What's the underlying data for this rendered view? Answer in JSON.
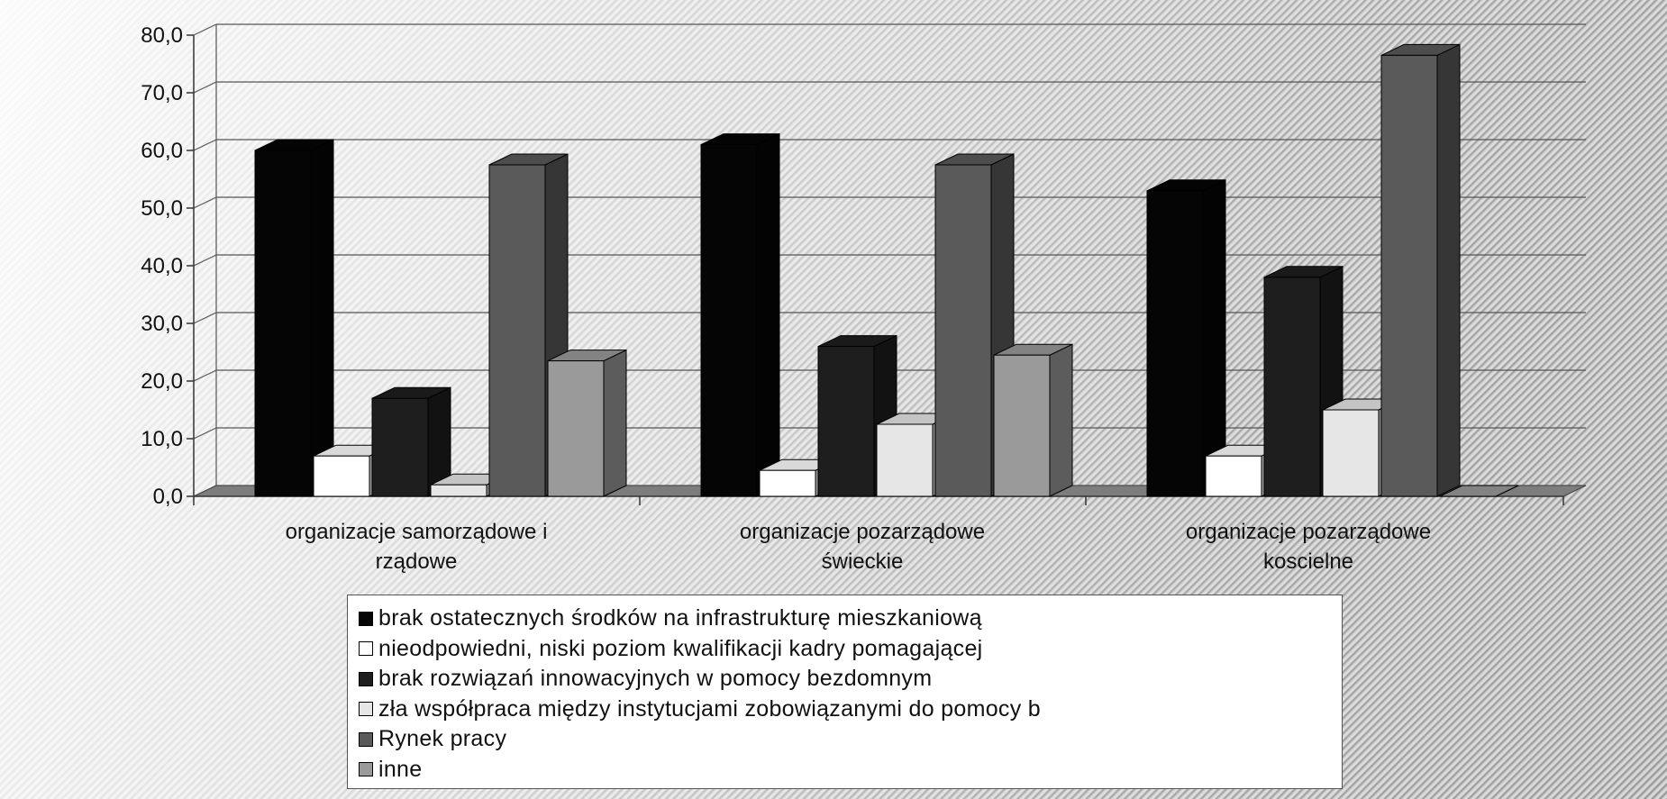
{
  "chart_data": {
    "type": "bar",
    "categories": [
      [
        "organizacje samorządowe i",
        "rządowe"
      ],
      [
        "organizacje pozarządowe",
        "świeckie"
      ],
      [
        "organizacje pozarządowe",
        "koscielne"
      ]
    ],
    "series": [
      {
        "name": "brak ostatecznych środków na infrastrukturę mieszkaniową",
        "color": "#050505",
        "values": [
          60.0,
          61.0,
          53.0
        ]
      },
      {
        "name": "nieodpowiedni, niski poziom kwalifikacji kadry pomagającej",
        "color": "#ffffff",
        "values": [
          7.0,
          4.5,
          7.0
        ]
      },
      {
        "name": "brak rozwiązań innowacyjnych w pomocy bezdomnym",
        "color": "#1e1e1e",
        "values": [
          17.0,
          26.0,
          38.0
        ]
      },
      {
        "name": "zła współpraca między instytucjami zobowiązanymi do pomocy b",
        "color": "#e6e6e6",
        "values": [
          2.0,
          12.5,
          15.0
        ]
      },
      {
        "name": "Rynek pracy",
        "color": "#5a5a5a",
        "values": [
          57.5,
          57.5,
          76.5
        ]
      },
      {
        "name": "inne",
        "color": "#9a9a9a",
        "values": [
          23.5,
          24.5,
          0.0
        ]
      }
    ],
    "yticks": [
      "0,0",
      "10,0",
      "20,0",
      "30,0",
      "40,0",
      "50,0",
      "60,0",
      "70,0",
      "80,0"
    ],
    "ylim": [
      0,
      80
    ],
    "grid": true,
    "legend_position": "bottom",
    "style": "3d-clustered-column"
  }
}
